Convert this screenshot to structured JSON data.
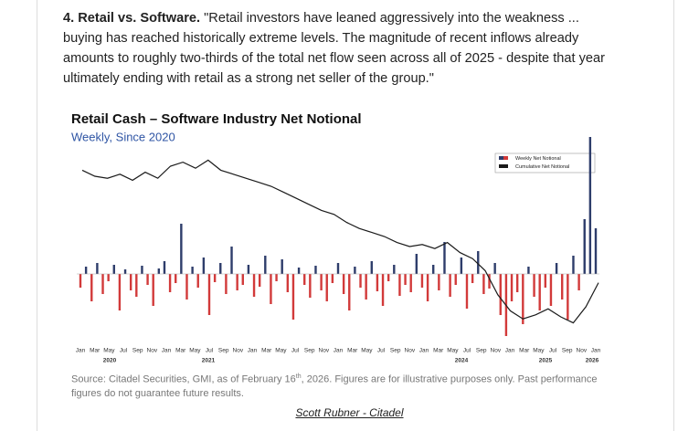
{
  "paragraph": {
    "heading": "4. Retail vs. Software.",
    "text": " \"Retail investors have leaned aggressively into the weakness ... buying has reached historically extreme levels. The magnitude of recent inflows already amounts to roughly two-thirds of the total net flow seen across all of 2025 - despite that year ultimately ending with retail as a strong net seller of the group.\""
  },
  "chart": {
    "type": "bar",
    "title": "Retail Cash – Software Industry Net Notional",
    "subtitle": "Weekly, Since 2020",
    "x_labels": [
      "Jan",
      "Mar",
      "May",
      "Jul",
      "Sep",
      "Nov",
      "Jan",
      "Mar",
      "May",
      "Jul",
      "Sep",
      "Nov",
      "Jan",
      "Mar",
      "May",
      "Jul",
      "Sep",
      "Nov",
      "Jan",
      "Mar",
      "May",
      "Jul",
      "Sep",
      "Nov",
      "Jan",
      "Mar",
      "May",
      "Jul",
      "Sep",
      "Nov",
      "Jan",
      "Mar",
      "May",
      "Jul",
      "Sep",
      "Nov",
      "Jan"
    ],
    "year_labels": [
      "2020",
      "2021",
      "2024",
      "2025",
      "2026"
    ],
    "ylim": [
      -80,
      140
    ],
    "y2lim": [
      0,
      100
    ],
    "series": [
      {
        "name": "Weekly Net Notional",
        "color": "#2e3d6b",
        "negative_color": "#d23a3a",
        "values": [
          -15,
          8,
          -30,
          12,
          -22,
          -8,
          10,
          -40,
          5,
          -18,
          -25,
          9,
          -12,
          -35,
          6,
          14,
          -20,
          -10,
          55,
          -28,
          8,
          -15,
          18,
          -45,
          -9,
          12,
          -22,
          30,
          -18,
          -12,
          10,
          -25,
          -14,
          20,
          -33,
          -8,
          16,
          -20,
          -50,
          7,
          -12,
          -26,
          9,
          -18,
          -30,
          -10,
          12,
          -22,
          -40,
          8,
          -15,
          -28,
          14,
          -19,
          -35,
          -8,
          10,
          -24,
          -12,
          -20,
          22,
          -15,
          -30,
          10,
          -18,
          35,
          -25,
          -12,
          18,
          -38,
          -10,
          25,
          -22,
          -16,
          12,
          -45,
          -68,
          -30,
          -20,
          -55,
          8,
          -25,
          -40,
          -15,
          -35,
          12,
          -28,
          -50,
          20,
          -18,
          60,
          150,
          50
        ]
      },
      {
        "name": "Cumulative Net Notional",
        "color": "#1a1a1a",
        "axis": "y2",
        "values": [
          88,
          85,
          84,
          86,
          83,
          87,
          84,
          90,
          92,
          89,
          93,
          88,
          86,
          84,
          82,
          80,
          77,
          74,
          71,
          68,
          66,
          62,
          59,
          57,
          55,
          52,
          50,
          51,
          49,
          52,
          47,
          44,
          38,
          26,
          18,
          14,
          16,
          19,
          15,
          12,
          20,
          32
        ]
      }
    ]
  },
  "source": [
    "Source: Citadel Securities, GMI, as of February 16",
    "th",
    ", 2026. Figures are for illustrative purposes only. Past performance figures do not guarantee future results."
  ],
  "credit": "Scott Rubner - Citadel"
}
